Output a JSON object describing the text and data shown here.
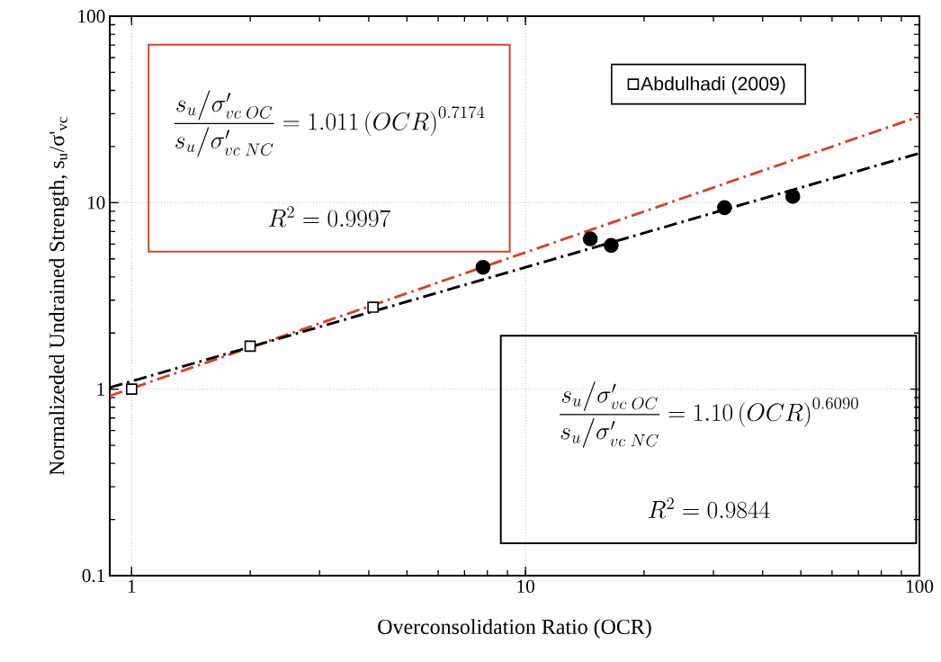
{
  "chart_data": {
    "type": "scatter",
    "xlabel": "Overconsolidation Ratio (OCR)",
    "ylabel": "Normalizeded Undrained Strength, s$_{u}$/σ'$_{vc}$",
    "log": "xy",
    "grid": true,
    "legend": "top right",
    "xlim": [
      0.88,
      100
    ],
    "xticks": [
      1,
      10,
      100
    ],
    "ylim": [
      0.1,
      100
    ],
    "yticks": [
      0.1,
      1,
      10,
      100
    ],
    "series": [
      {
        "type": "line",
        "color": "#d9412b",
        "line_style": "dashed",
        "marker": "none",
        "x": [
          0.88,
          100
        ],
        "values": [
          0.92,
          29
        ]
      },
      {
        "type": "line",
        "color": "#000000",
        "line_style": "dashed",
        "marker": "none",
        "x": [
          0.88,
          100
        ],
        "values": [
          1.02,
          18.4
        ]
      },
      {
        "name": "Abdulhadi (2009)",
        "color": "#000000",
        "marker": "square",
        "x": [
          1,
          2,
          4.1
        ],
        "values": [
          1,
          1.7,
          2.75
        ]
      },
      {
        "color": "#000000",
        "marker": "circle",
        "x": [
          7.8,
          14.6,
          16.5,
          32,
          47.7
        ],
        "values": [
          4.5,
          6.4,
          5.9,
          9.4,
          10.8
        ]
      }
    ],
    "annotations": [
      "\\frac{s_u\\big/\\sigma'_{vc\\;OC}}{s_u\\big/\\sigma'_{vc\\;NC}}=1.011\\left(OCR\\right)^{0.7174}",
      "R^2 = 0.9997",
      "\\frac{s_u\\big/\\sigma'_{vc\\;OC}}{s_u\\big/\\sigma'_{vc\\;NC}}=1.10\\left(OCR\\right)^{0.6090}",
      "R^2 = 0.9844"
    ]
  }
}
